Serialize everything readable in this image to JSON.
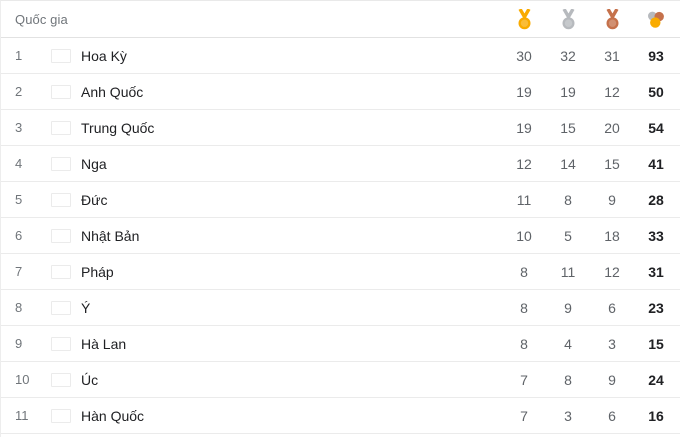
{
  "header": {
    "country_label": "Quốc gia",
    "columns": [
      {
        "id": "gold",
        "icon": "gold-medal-icon"
      },
      {
        "id": "silver",
        "icon": "silver-medal-icon"
      },
      {
        "id": "bronze",
        "icon": "bronze-medal-icon"
      },
      {
        "id": "total",
        "icon": "total-medals-icon"
      }
    ]
  },
  "colors": {
    "gold": "#F9AB00",
    "silver": "#B7BABE",
    "bronze": "#C5714B",
    "country_text": "#202124",
    "muted_text": "#70757A",
    "count_text": "#5F6368",
    "divider": "#EBEBEB"
  },
  "rows": [
    {
      "rank": "1",
      "flag": "us",
      "country": "Hoa Kỳ",
      "gold": "30",
      "silver": "32",
      "bronze": "31",
      "total": "93"
    },
    {
      "rank": "2",
      "flag": "gb",
      "country": "Anh Quốc",
      "gold": "19",
      "silver": "19",
      "bronze": "12",
      "total": "50"
    },
    {
      "rank": "3",
      "flag": "cn",
      "country": "Trung Quốc",
      "gold": "19",
      "silver": "15",
      "bronze": "20",
      "total": "54"
    },
    {
      "rank": "4",
      "flag": "ru",
      "country": "Nga",
      "gold": "12",
      "silver": "14",
      "bronze": "15",
      "total": "41"
    },
    {
      "rank": "5",
      "flag": "de",
      "country": "Đức",
      "gold": "11",
      "silver": "8",
      "bronze": "9",
      "total": "28"
    },
    {
      "rank": "6",
      "flag": "jp",
      "country": "Nhật Bản",
      "gold": "10",
      "silver": "5",
      "bronze": "18",
      "total": "33"
    },
    {
      "rank": "7",
      "flag": "fr",
      "country": "Pháp",
      "gold": "8",
      "silver": "11",
      "bronze": "12",
      "total": "31"
    },
    {
      "rank": "8",
      "flag": "it",
      "country": "Ý",
      "gold": "8",
      "silver": "9",
      "bronze": "6",
      "total": "23"
    },
    {
      "rank": "9",
      "flag": "nl",
      "country": "Hà Lan",
      "gold": "8",
      "silver": "4",
      "bronze": "3",
      "total": "15"
    },
    {
      "rank": "10",
      "flag": "au",
      "country": "Úc",
      "gold": "7",
      "silver": "8",
      "bronze": "9",
      "total": "24"
    },
    {
      "rank": "11",
      "flag": "kr",
      "country": "Hàn Quốc",
      "gold": "7",
      "silver": "3",
      "bronze": "6",
      "total": "16"
    }
  ]
}
